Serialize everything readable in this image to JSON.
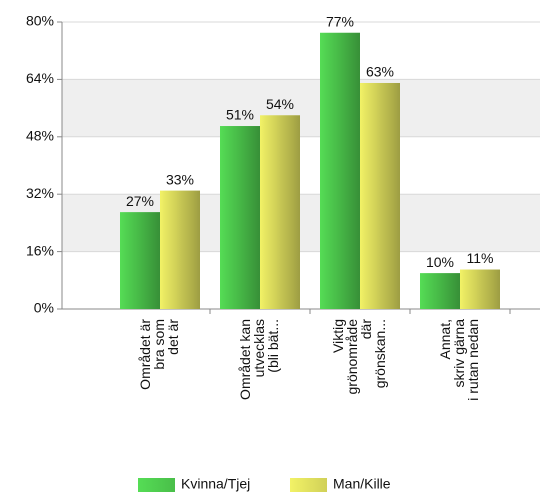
{
  "chart_data": {
    "type": "bar",
    "categories": [
      "Området är\nbra som\ndet är",
      "Området kan\nutvecklas\n(bli bät...",
      "Viktig\ngrönområde\ndär\ngrönskan...",
      "Annat,\nskriv gärna\ni rutan nedan"
    ],
    "series": [
      {
        "name": "Kvinna/Tjej",
        "color": "#55dd55",
        "values": [
          27,
          51,
          77,
          10
        ],
        "value_labels": [
          "27%",
          "51%",
          "77%",
          "10%"
        ]
      },
      {
        "name": "Man/Kille",
        "color": "#f2f266",
        "values": [
          33,
          54,
          63,
          11
        ],
        "value_labels": [
          "33%",
          "54%",
          "63%",
          "11%"
        ]
      }
    ],
    "ylim": [
      0,
      80
    ],
    "yticks": [
      {
        "value": 0,
        "label": "0%"
      },
      {
        "value": 16,
        "label": "16%"
      },
      {
        "value": 32,
        "label": "32%"
      },
      {
        "value": 48,
        "label": "48%"
      },
      {
        "value": 64,
        "label": "64%"
      },
      {
        "value": 80,
        "label": "80%"
      }
    ],
    "grid": true,
    "legend": "bottom"
  }
}
